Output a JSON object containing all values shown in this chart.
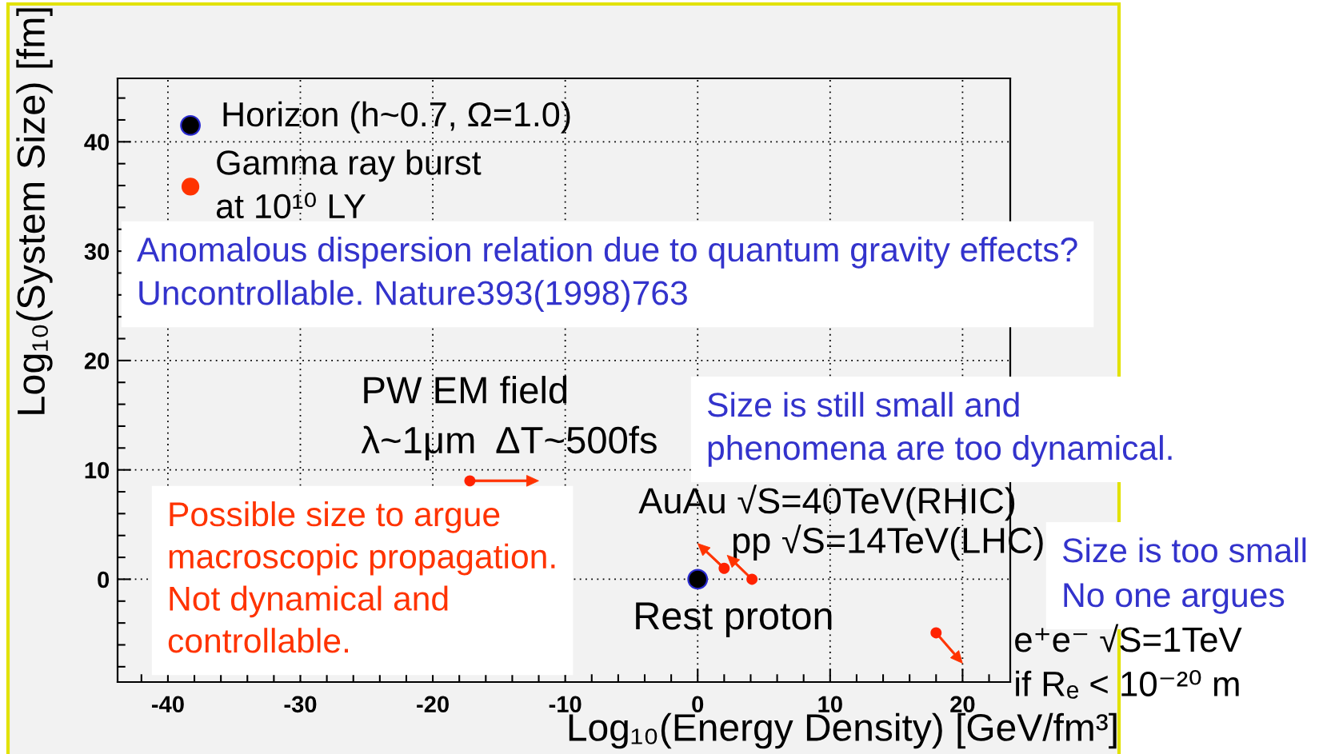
{
  "chart_data": {
    "type": "scatter",
    "xlabel": "Log₁₀(Energy Density) [GeV/fm³]",
    "ylabel": "Log₁₀(System Size) [fm]",
    "xlim": [
      -43.8,
      23.6
    ],
    "ylim": [
      -9.4,
      45.8
    ],
    "xticks": [
      -40,
      -30,
      -20,
      -10,
      0,
      10,
      20
    ],
    "yticks": [
      0,
      10,
      20,
      30,
      40
    ],
    "grid": true,
    "series": [
      {
        "color": "#000000",
        "marker": "circle",
        "x": [
          -38.3,
          0
        ],
        "values": [
          41.5,
          0
        ]
      },
      {
        "color": "#ff3300",
        "marker": "circle",
        "x": [
          -38.3
        ],
        "values": [
          35.9
        ]
      },
      {
        "color": "#ff2200",
        "marker": "circle",
        "x": [
          -17.2,
          2,
          4.1,
          18
        ],
        "values": [
          9,
          1,
          0,
          -4.9
        ]
      }
    ],
    "annotations": [
      {
        "text": "Horizon (h~0.7, Ω=1.0)",
        "x": -38.3,
        "y": 41.5
      },
      {
        "text": "Gamma ray burst\nat 10¹⁰ LY",
        "x": -38.3,
        "y": 35.9
      },
      {
        "text": "PW EM field\nλ~1μm  ΔT~500fs",
        "x": -17.2,
        "y": 9
      },
      {
        "text": "AuAu √S=40TeV(RHIC)",
        "x": 2,
        "y": 1
      },
      {
        "text": "pp √S=14TeV(LHC)",
        "x": 4.1,
        "y": 0
      },
      {
        "text": "Rest proton",
        "x": 0,
        "y": 0
      },
      {
        "text": "e⁺e⁻ √S=1TeV\nif Rₑ < 10⁻²⁰ m",
        "x": 18,
        "y": -4.9
      },
      "Anomalous dispersion relation due to quantum gravity effects?\nUncontrollable. Nature393(1998)763",
      "Possible size to argue\nmacroscopic propagation.\nNot dynamical and\ncontrollable.",
      "Size is still small and\nphenomena are too dynamical.",
      "Size is too small\nNo one argues"
    ]
  }
}
